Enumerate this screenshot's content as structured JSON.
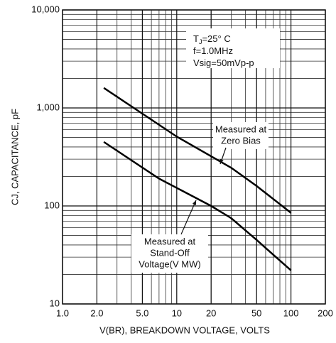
{
  "chart_data": {
    "type": "line",
    "x_label": "V(BR), BREAKDOWN  VOLTAGE, VOLTS",
    "y_label": "CJ, CAPACITANCE, pF",
    "log_x": true,
    "log_y": true,
    "grid": true,
    "xlim": [
      1,
      200
    ],
    "xticks": [
      {
        "value": 1,
        "label": "1.0"
      },
      {
        "value": 2,
        "label": "2.0"
      },
      {
        "value": 5,
        "label": "5.0"
      },
      10,
      20,
      50,
      100,
      200
    ],
    "ylim": [
      10,
      10000
    ],
    "yticks": [
      10,
      100,
      {
        "value": 1000,
        "label": "1,000"
      },
      {
        "value": 10000,
        "label": "10,000"
      }
    ],
    "series": [
      {
        "color": "#000000",
        "x": [
          2.3,
          10,
          30,
          50,
          100
        ],
        "values": [
          1600,
          510,
          245,
          160,
          85
        ]
      },
      {
        "color": "#000000",
        "x": [
          2.3,
          7,
          20,
          30,
          50,
          100
        ],
        "values": [
          450,
          190,
          100,
          75,
          45,
          22
        ]
      }
    ],
    "conditions": [
      {
        "main": "T",
        "sub": "J",
        "rest": "=25° C"
      },
      {
        "main": "f=1.0MHz"
      },
      {
        "main": "Vsig=50mVp-p"
      }
    ],
    "annotations": [
      {
        "lines": [
          "Measured at",
          "Zero Bias"
        ]
      },
      {
        "lines": [
          "Measured at",
          "Stand-Off",
          "Voltage(V MW)"
        ]
      }
    ]
  }
}
